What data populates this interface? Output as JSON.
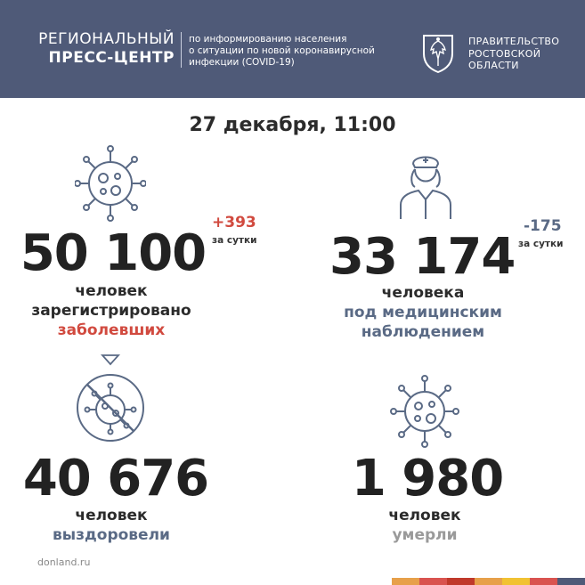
{
  "header": {
    "press_line1": "РЕГИОНАЛЬНЫЙ",
    "press_line2": "ПРЕСС-ЦЕНТР",
    "description": [
      "по информированию населения",
      "о ситуации по новой коронавирусной",
      "инфекции (COVID-19)"
    ],
    "government": [
      "ПРАВИТЕЛЬСТВО",
      "РОСТОВСКОЙ",
      "ОБЛАСТИ"
    ]
  },
  "date": "27 декабря, 11:00",
  "cases": {
    "number": "50 100",
    "delta": "+393",
    "per_day": "за сутки",
    "caption": [
      "человек",
      "зарегистрировано",
      "заболевших"
    ]
  },
  "observation": {
    "number": "33 174",
    "delta": "-175",
    "per_day": "за сутки",
    "caption": [
      "человека",
      "под медицинским",
      "наблюдением"
    ]
  },
  "recovered": {
    "number": "40 676",
    "caption": [
      "человек",
      "выздоровели"
    ]
  },
  "deaths": {
    "number": "1 980",
    "caption": [
      "человек",
      "умерли"
    ]
  },
  "footer": {
    "site": "donland.ru"
  },
  "colors": {
    "header_bg": "#4f5a78",
    "accent_red": "#d14a3f",
    "accent_slate": "#5a6a85",
    "muted_grey": "#9a9a9a",
    "stripe": [
      "#e7a04a",
      "#d9534f",
      "#c0392b",
      "#e7a04a",
      "#f1c232",
      "#d9534f",
      "#4f5a78"
    ]
  },
  "icons": [
    "coat-of-arms-icon",
    "virus-icon",
    "nurse-icon",
    "crossed-virus-icon",
    "arrow-down-icon"
  ]
}
